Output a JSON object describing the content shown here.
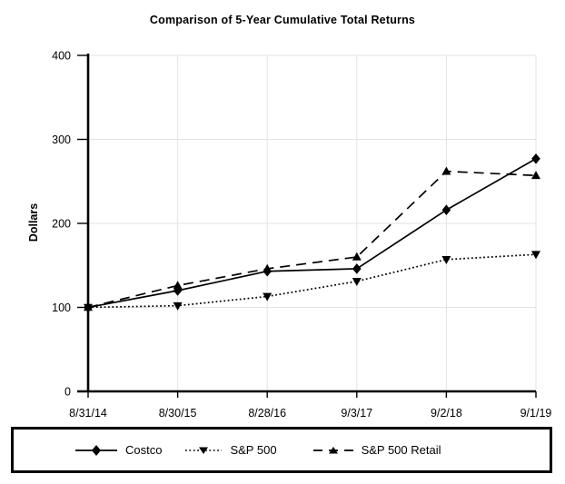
{
  "chart_data": {
    "type": "line",
    "title": "Comparison of 5-Year Cumulative Total Returns",
    "xlabel": "",
    "ylabel": "Dollars",
    "categories": [
      "8/31/14",
      "8/30/15",
      "8/28/16",
      "9/3/17",
      "9/2/18",
      "9/1/19"
    ],
    "series": [
      {
        "name": "Costco",
        "style": "solid",
        "marker": "diamond",
        "values": [
          100,
          120,
          143,
          146,
          216,
          277
        ]
      },
      {
        "name": "S&P 500",
        "style": "dotted",
        "marker": "triangle-down",
        "values": [
          100,
          102,
          113,
          131,
          157,
          163
        ]
      },
      {
        "name": "S&P 500 Retail",
        "style": "dashed",
        "marker": "triangle-up",
        "values": [
          100,
          126,
          146,
          160,
          262,
          257
        ]
      }
    ],
    "ylim": [
      0,
      400
    ],
    "yticks": [
      0,
      100,
      200,
      300,
      400
    ],
    "grid": true,
    "legend_position": "bottom-box",
    "colors": {
      "line": "#000000",
      "grid": "#e3e3e3",
      "text": "#000000",
      "background": "#ffffff"
    }
  }
}
